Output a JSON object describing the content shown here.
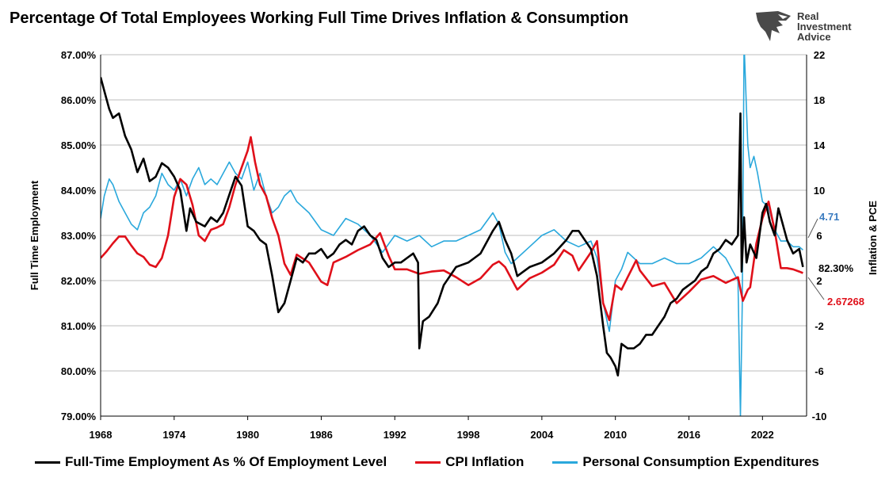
{
  "chart_data": {
    "type": "line",
    "title": "Percentage Of Total Employees Working Full Time Drives Inflation & Consumption",
    "ylabel_left": "Full Time Employment",
    "ylabel_right": "Inflation & PCE",
    "ylim_left": [
      79,
      87
    ],
    "ylim_right": [
      -10,
      22
    ],
    "xlim": [
      1968,
      2025.6
    ],
    "x_ticks": [
      "1968",
      "1974",
      "1980",
      "1986",
      "1992",
      "1998",
      "2004",
      "2010",
      "2016",
      "2022"
    ],
    "y_ticks_left": [
      "79.00%",
      "80.00%",
      "81.00%",
      "82.00%",
      "83.00%",
      "84.00%",
      "85.00%",
      "86.00%",
      "87.00%"
    ],
    "y_ticks_right": [
      "-10",
      "-6",
      "-2",
      "2",
      "6",
      "10",
      "14",
      "18",
      "22"
    ],
    "grid": true,
    "legend_position": "bottom",
    "series": [
      {
        "name": "Full-Time Employment As % Of Employment Level",
        "axis": "left",
        "color": "#000000",
        "x": [
          1968.0,
          1968.3,
          1968.7,
          1969.0,
          1969.5,
          1970.0,
          1970.5,
          1971.0,
          1971.5,
          1972.0,
          1972.5,
          1973.0,
          1973.5,
          1974.0,
          1974.5,
          1975.0,
          1975.3,
          1975.8,
          1976.5,
          1977.0,
          1977.5,
          1978.0,
          1978.5,
          1979.0,
          1979.5,
          1980.0,
          1980.5,
          1981.0,
          1981.5,
          1982.0,
          1982.5,
          1983.0,
          1983.5,
          1984.0,
          1984.5,
          1985.0,
          1985.5,
          1986.0,
          1986.5,
          1987.0,
          1987.5,
          1988.0,
          1988.5,
          1989.0,
          1989.5,
          1990.0,
          1990.5,
          1991.0,
          1991.5,
          1992.0,
          1992.5,
          1993.0,
          1993.5,
          1993.9,
          1994.0,
          1994.3,
          1994.8,
          1995.5,
          1996.0,
          1997.0,
          1998.0,
          1998.5,
          1999.0,
          2000.0,
          2000.5,
          2001.0,
          2001.5,
          2002.0,
          2002.5,
          2003.0,
          2004.0,
          2005.0,
          2006.0,
          2006.5,
          2007.0,
          2007.5,
          2008.0,
          2008.5,
          2009.0,
          2009.3,
          2009.6,
          2010.0,
          2010.2,
          2010.5,
          2011.0,
          2011.5,
          2012.0,
          2012.5,
          2013.0,
          2013.5,
          2014.0,
          2014.5,
          2015.0,
          2015.5,
          2016.0,
          2016.5,
          2017.0,
          2017.5,
          2018.0,
          2018.5,
          2019.0,
          2019.5,
          2020.0,
          2020.2,
          2020.3,
          2020.5,
          2020.7,
          2021.0,
          2021.5,
          2022.0,
          2022.3,
          2022.6,
          2023.0,
          2023.3,
          2023.6,
          2024.0,
          2024.5,
          2025.0,
          2025.3
        ],
        "values": [
          86.5,
          86.2,
          85.8,
          85.6,
          85.7,
          85.2,
          84.9,
          84.4,
          84.7,
          84.2,
          84.3,
          84.6,
          84.5,
          84.3,
          84.0,
          83.1,
          83.6,
          83.3,
          83.2,
          83.4,
          83.3,
          83.5,
          83.9,
          84.3,
          84.1,
          83.2,
          83.1,
          82.9,
          82.8,
          82.1,
          81.3,
          81.5,
          82.0,
          82.5,
          82.4,
          82.6,
          82.6,
          82.7,
          82.5,
          82.6,
          82.8,
          82.9,
          82.8,
          83.1,
          83.2,
          83.0,
          82.9,
          82.5,
          82.3,
          82.4,
          82.4,
          82.5,
          82.6,
          82.4,
          80.5,
          81.1,
          81.2,
          81.5,
          81.9,
          82.3,
          82.4,
          82.5,
          82.6,
          83.1,
          83.3,
          82.9,
          82.6,
          82.1,
          82.2,
          82.3,
          82.4,
          82.6,
          82.9,
          83.1,
          83.1,
          82.9,
          82.7,
          82.1,
          81.0,
          80.4,
          80.3,
          80.1,
          79.9,
          80.6,
          80.5,
          80.5,
          80.6,
          80.8,
          80.8,
          81.0,
          81.2,
          81.5,
          81.6,
          81.8,
          81.9,
          82.0,
          82.2,
          82.3,
          82.6,
          82.7,
          82.9,
          82.8,
          83.0,
          85.7,
          82.2,
          83.4,
          82.4,
          82.8,
          82.5,
          83.5,
          83.7,
          83.3,
          83.0,
          83.6,
          83.3,
          82.9,
          82.6,
          82.7,
          82.3
        ]
      },
      {
        "name": "CPI Inflation",
        "axis": "right",
        "color": "#e0101a",
        "x": [
          1968.0,
          1968.5,
          1969.0,
          1969.5,
          1970.0,
          1970.5,
          1971.0,
          1971.5,
          1972.0,
          1972.5,
          1973.0,
          1973.5,
          1974.0,
          1974.5,
          1975.0,
          1975.5,
          1976.0,
          1976.5,
          1977.0,
          1977.5,
          1978.0,
          1978.5,
          1979.0,
          1979.5,
          1980.0,
          1980.25,
          1980.6,
          1981.0,
          1981.5,
          1982.0,
          1982.5,
          1983.0,
          1983.5,
          1984.0,
          1985.0,
          1986.0,
          1986.5,
          1987.0,
          1988.0,
          1989.0,
          1990.0,
          1990.8,
          1991.5,
          1992.0,
          1993.0,
          1994.0,
          1995.0,
          1996.0,
          1997.0,
          1998.0,
          1999.0,
          2000.0,
          2000.5,
          2001.0,
          2001.8,
          2002.0,
          2003.0,
          2004.0,
          2005.0,
          2005.8,
          2006.5,
          2007.0,
          2008.0,
          2008.5,
          2009.0,
          2009.5,
          2010.0,
          2010.5,
          2011.0,
          2011.7,
          2012.0,
          2013.0,
          2014.0,
          2015.0,
          2016.0,
          2017.0,
          2018.0,
          2019.0,
          2020.0,
          2020.4,
          2020.8,
          2021.0,
          2021.5,
          2022.0,
          2022.5,
          2023.0,
          2023.5,
          2024.0,
          2024.5,
          2025.0,
          2025.3
        ],
        "values": [
          4.0,
          4.6,
          5.3,
          5.9,
          5.9,
          5.1,
          4.4,
          4.1,
          3.4,
          3.2,
          4.0,
          6.0,
          9.4,
          11.0,
          10.5,
          8.7,
          6.0,
          5.5,
          6.5,
          6.7,
          7.0,
          8.5,
          10.5,
          12.0,
          13.5,
          14.7,
          12.5,
          10.5,
          9.5,
          7.5,
          6.0,
          3.5,
          2.5,
          4.3,
          3.6,
          1.9,
          1.6,
          3.6,
          4.1,
          4.7,
          5.2,
          6.2,
          4.2,
          3.0,
          3.0,
          2.6,
          2.8,
          2.9,
          2.3,
          1.6,
          2.2,
          3.4,
          3.7,
          3.2,
          1.6,
          1.2,
          2.2,
          2.7,
          3.4,
          4.7,
          4.2,
          2.9,
          4.5,
          5.5,
          0.0,
          -1.5,
          1.6,
          1.2,
          2.3,
          3.8,
          2.9,
          1.5,
          1.8,
          0.0,
          1.0,
          2.1,
          2.4,
          1.8,
          2.3,
          0.2,
          1.2,
          1.4,
          5.3,
          7.5,
          9.0,
          6.4,
          3.1,
          3.1,
          3.0,
          2.8,
          2.67
        ]
      },
      {
        "name": "Personal Consumption Expenditures",
        "axis": "right",
        "color": "#2aa8dc",
        "x": [
          1968.0,
          1968.3,
          1968.7,
          1969.0,
          1969.5,
          1970.0,
          1970.5,
          1971.0,
          1971.5,
          1972.0,
          1972.5,
          1973.0,
          1973.5,
          1974.0,
          1974.5,
          1975.0,
          1975.5,
          1976.0,
          1976.5,
          1977.0,
          1977.5,
          1978.0,
          1978.5,
          1979.0,
          1979.5,
          1980.0,
          1980.5,
          1981.0,
          1981.5,
          1982.0,
          1982.5,
          1983.0,
          1983.5,
          1984.0,
          1984.5,
          1985.0,
          1986.0,
          1987.0,
          1988.0,
          1989.0,
          1990.0,
          1991.0,
          1992.0,
          1993.0,
          1994.0,
          1995.0,
          1996.0,
          1997.0,
          1998.0,
          1999.0,
          2000.0,
          2000.5,
          2001.0,
          2001.5,
          2002.0,
          2003.0,
          2004.0,
          2005.0,
          2006.0,
          2007.0,
          2008.0,
          2008.5,
          2009.0,
          2009.5,
          2010.0,
          2010.5,
          2011.0,
          2012.0,
          2013.0,
          2014.0,
          2015.0,
          2016.0,
          2017.0,
          2018.0,
          2019.0,
          2020.0,
          2020.2,
          2020.35,
          2020.5,
          2020.8,
          2021.0,
          2021.3,
          2021.6,
          2022.0,
          2022.5,
          2023.0,
          2023.5,
          2024.0,
          2024.5,
          2025.0,
          2025.3
        ],
        "values": [
          7.5,
          9.5,
          11.0,
          10.5,
          9.0,
          8.0,
          7.0,
          6.5,
          8.0,
          8.5,
          9.5,
          11.5,
          10.5,
          10.0,
          11.0,
          9.5,
          11.0,
          12.0,
          10.5,
          11.0,
          10.5,
          11.5,
          12.5,
          11.5,
          11.0,
          12.5,
          10.0,
          11.5,
          9.5,
          8.0,
          8.5,
          9.5,
          10.0,
          9.0,
          8.5,
          8.0,
          6.5,
          6.0,
          7.5,
          7.0,
          6.0,
          4.5,
          6.0,
          5.5,
          6.0,
          5.0,
          5.5,
          5.5,
          6.0,
          6.5,
          8.0,
          7.0,
          4.5,
          3.5,
          4.0,
          5.0,
          6.0,
          6.5,
          5.5,
          5.0,
          5.5,
          4.0,
          0.0,
          -2.5,
          2.0,
          3.0,
          4.5,
          3.5,
          3.5,
          4.0,
          3.5,
          3.5,
          4.0,
          5.0,
          4.0,
          2.0,
          -10.0,
          0.0,
          23.0,
          14.0,
          12.0,
          13.0,
          11.5,
          9.0,
          8.5,
          6.5,
          5.5,
          5.5,
          5.0,
          5.0,
          4.71
        ]
      }
    ],
    "end_labels": {
      "pce": "4.71",
      "fte": "82.30%",
      "cpi": "2.67268"
    }
  },
  "logo": {
    "line1": "Real",
    "line2": "Investment",
    "line3": "Advice"
  },
  "colors": {
    "fte": "#000000",
    "cpi": "#e0101a",
    "pce": "#2aa8dc",
    "pce_label": "#3b7cc0",
    "grid": "#bdbdbd"
  }
}
